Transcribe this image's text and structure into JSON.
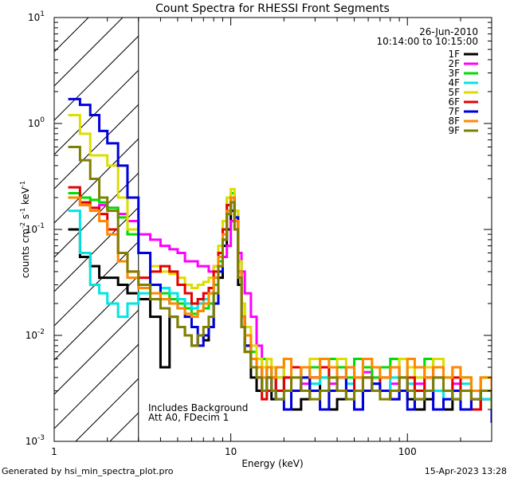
{
  "chart_data": {
    "type": "line",
    "title": "Count Spectra for RHESSI Front Segments",
    "xlabel": "Energy (keV)",
    "ylabel_parts": [
      "counts cm",
      "-2",
      " s",
      "-1",
      " keV",
      "-1"
    ],
    "xscale": "log",
    "yscale": "log",
    "xlim": [
      1,
      300
    ],
    "ylim": [
      0.001,
      10
    ],
    "x_ticks": [
      {
        "value": 1,
        "label": "1"
      },
      {
        "value": 10,
        "label": "10"
      },
      {
        "value": 100,
        "label": "100"
      }
    ],
    "y_ticks": [
      {
        "value": 0.001,
        "base": "10",
        "exp": "-3"
      },
      {
        "value": 0.01,
        "base": "10",
        "exp": "-2"
      },
      {
        "value": 0.1,
        "base": "10",
        "exp": "-1"
      },
      {
        "value": 1,
        "base": "10",
        "exp": "0"
      },
      {
        "value": 10,
        "base": "10",
        "exp": "1"
      }
    ],
    "shaded_region": {
      "x_from": 1,
      "x_to": 3,
      "pattern": "diagonal-hatch"
    },
    "date": "26-Jun-2010",
    "time_range": "10:14:00 to 10:15:00",
    "annotations": [
      "Includes Background",
      "Att A0, FDecim 1"
    ],
    "footer_left": "Generated by hsi_min_spectra_plot.pro",
    "footer_right": "15-Apr-2023 13:28",
    "series": [
      {
        "name": "1F",
        "color": "#000000",
        "x": [
          1.2,
          1.4,
          1.6,
          1.8,
          2.0,
          2.3,
          2.6,
          3.0,
          3.5,
          4.0,
          4.5,
          5.0,
          5.5,
          6.0,
          6.5,
          7.0,
          7.5,
          8.0,
          8.5,
          9.0,
          9.5,
          10.0,
          10.5,
          11.0,
          11.5,
          12.0,
          13,
          14,
          15,
          16,
          17,
          18,
          20,
          22,
          25,
          28,
          32,
          36,
          40,
          45,
          50,
          56,
          63,
          70,
          80,
          90,
          100,
          110,
          125,
          140,
          160,
          180,
          200,
          230,
          260,
          300
        ],
        "y": [
          0.1,
          0.055,
          0.045,
          0.035,
          0.035,
          0.03,
          0.025,
          0.022,
          0.015,
          0.005,
          0.015,
          0.012,
          0.01,
          0.008,
          0.01,
          0.009,
          0.012,
          0.02,
          0.035,
          0.07,
          0.1,
          0.15,
          0.12,
          0.03,
          0.012,
          0.007,
          0.004,
          0.003,
          0.005,
          0.003,
          0.0025,
          0.004,
          0.003,
          0.002,
          0.0025,
          0.004,
          0.003,
          0.002,
          0.0025,
          0.003,
          0.002,
          0.003,
          0.0035,
          0.003,
          0.0025,
          0.003,
          0.0025,
          0.002,
          0.0025,
          0.003,
          0.002,
          0.0025,
          0.003,
          0.002,
          0.0025,
          0.0015
        ]
      },
      {
        "name": "2F",
        "color": "#ff00ff",
        "x": [
          1.2,
          1.4,
          1.6,
          1.8,
          2.0,
          2.3,
          2.6,
          3.0,
          3.5,
          4.0,
          4.5,
          5.0,
          5.5,
          6.0,
          6.5,
          7.0,
          7.5,
          8.0,
          8.5,
          9.0,
          9.5,
          10.0,
          10.5,
          11.0,
          11.5,
          12.0,
          13,
          14,
          15,
          16,
          17,
          18,
          20,
          22,
          25,
          28,
          32,
          36,
          40,
          45,
          50,
          56,
          63,
          70,
          80,
          90,
          100,
          110,
          125,
          140,
          160,
          180,
          200,
          230,
          260,
          300
        ],
        "y": [
          0.2,
          0.17,
          0.16,
          0.17,
          0.16,
          0.14,
          0.12,
          0.09,
          0.08,
          0.07,
          0.065,
          0.06,
          0.05,
          0.05,
          0.045,
          0.045,
          0.04,
          0.045,
          0.05,
          0.055,
          0.07,
          0.12,
          0.15,
          0.06,
          0.04,
          0.025,
          0.015,
          0.008,
          0.006,
          0.005,
          0.004,
          0.005,
          0.004,
          0.003,
          0.0035,
          0.004,
          0.005,
          0.0035,
          0.004,
          0.003,
          0.004,
          0.0045,
          0.004,
          0.003,
          0.0035,
          0.004,
          0.003,
          0.0035,
          0.003,
          0.004,
          0.003,
          0.0035,
          0.004,
          0.003,
          0.0025,
          0.002
        ]
      },
      {
        "name": "3F",
        "color": "#00dd00",
        "x": [
          1.2,
          1.4,
          1.6,
          1.8,
          2.0,
          2.3,
          2.6,
          3.0,
          3.5,
          4.0,
          4.5,
          5.0,
          5.5,
          6.0,
          6.5,
          7.0,
          7.5,
          8.0,
          8.5,
          9.0,
          9.5,
          10.0,
          10.5,
          11.0,
          11.5,
          12.0,
          13,
          14,
          15,
          16,
          17,
          18,
          20,
          22,
          25,
          28,
          32,
          36,
          40,
          45,
          50,
          56,
          63,
          70,
          80,
          90,
          100,
          110,
          125,
          140,
          160,
          180,
          200,
          230,
          260,
          300
        ],
        "y": [
          0.22,
          0.2,
          0.19,
          0.18,
          0.16,
          0.13,
          0.09,
          0.06,
          0.03,
          0.025,
          0.022,
          0.02,
          0.018,
          0.016,
          0.017,
          0.018,
          0.02,
          0.03,
          0.05,
          0.1,
          0.2,
          0.22,
          0.15,
          0.05,
          0.02,
          0.01,
          0.007,
          0.005,
          0.006,
          0.004,
          0.005,
          0.004,
          0.006,
          0.005,
          0.004,
          0.005,
          0.004,
          0.006,
          0.005,
          0.004,
          0.006,
          0.005,
          0.004,
          0.005,
          0.006,
          0.004,
          0.005,
          0.004,
          0.006,
          0.005,
          0.004,
          0.005,
          0.004,
          0.003,
          0.004,
          0.003
        ]
      },
      {
        "name": "4F",
        "color": "#00e5e5",
        "x": [
          1.2,
          1.4,
          1.6,
          1.8,
          2.0,
          2.3,
          2.6,
          3.0,
          3.5,
          4.0,
          4.5,
          5.0,
          5.5,
          6.0,
          6.5,
          7.0,
          7.5,
          8.0,
          8.5,
          9.0,
          9.5,
          10.0,
          10.5,
          11.0,
          11.5,
          12.0,
          13,
          14,
          15,
          16,
          17,
          18,
          20,
          22,
          25,
          28,
          32,
          36,
          40,
          45,
          50,
          56,
          63,
          70,
          80,
          90,
          100,
          110,
          125,
          140,
          160,
          180,
          200,
          230,
          260,
          300
        ],
        "y": [
          0.15,
          0.06,
          0.03,
          0.025,
          0.02,
          0.015,
          0.02,
          0.025,
          0.03,
          0.028,
          0.025,
          0.022,
          0.02,
          0.018,
          0.02,
          0.022,
          0.025,
          0.035,
          0.06,
          0.1,
          0.15,
          0.18,
          0.12,
          0.04,
          0.015,
          0.008,
          0.005,
          0.004,
          0.003,
          0.004,
          0.003,
          0.0025,
          0.003,
          0.004,
          0.003,
          0.0035,
          0.004,
          0.003,
          0.004,
          0.0035,
          0.003,
          0.004,
          0.0035,
          0.003,
          0.004,
          0.003,
          0.0035,
          0.003,
          0.004,
          0.003,
          0.0025,
          0.003,
          0.0035,
          0.003,
          0.0025,
          0.002
        ]
      },
      {
        "name": "5F",
        "color": "#dddd00",
        "x": [
          1.2,
          1.4,
          1.6,
          1.8,
          2.0,
          2.3,
          2.6,
          3.0,
          3.5,
          4.0,
          4.5,
          5.0,
          5.5,
          6.0,
          6.5,
          7.0,
          7.5,
          8.0,
          8.5,
          9.0,
          9.5,
          10.0,
          10.5,
          11.0,
          11.5,
          12.0,
          13,
          14,
          15,
          16,
          17,
          18,
          20,
          22,
          25,
          28,
          32,
          36,
          40,
          45,
          50,
          56,
          63,
          70,
          80,
          90,
          100,
          110,
          125,
          140,
          160,
          180,
          200,
          230,
          260,
          300
        ],
        "y": [
          1.2,
          0.8,
          0.5,
          0.5,
          0.4,
          0.2,
          0.1,
          0.06,
          0.045,
          0.04,
          0.038,
          0.035,
          0.03,
          0.028,
          0.03,
          0.032,
          0.035,
          0.045,
          0.07,
          0.12,
          0.2,
          0.24,
          0.15,
          0.05,
          0.02,
          0.012,
          0.008,
          0.006,
          0.005,
          0.006,
          0.005,
          0.004,
          0.006,
          0.005,
          0.005,
          0.006,
          0.005,
          0.004,
          0.006,
          0.005,
          0.004,
          0.006,
          0.005,
          0.004,
          0.005,
          0.006,
          0.005,
          0.004,
          0.005,
          0.006,
          0.004,
          0.005,
          0.004,
          0.003,
          0.004,
          0.003
        ]
      },
      {
        "name": "6F",
        "color": "#e50000",
        "x": [
          1.2,
          1.4,
          1.6,
          1.8,
          2.0,
          2.3,
          2.6,
          3.0,
          3.5,
          4.0,
          4.5,
          5.0,
          5.5,
          6.0,
          6.5,
          7.0,
          7.5,
          8.0,
          8.5,
          9.0,
          9.5,
          10.0,
          10.5,
          11.0,
          11.5,
          12.0,
          13,
          14,
          15,
          16,
          17,
          18,
          20,
          22,
          25,
          28,
          32,
          36,
          40,
          45,
          50,
          56,
          63,
          70,
          80,
          90,
          100,
          110,
          125,
          140,
          160,
          180,
          200,
          230,
          260,
          300
        ],
        "y": [
          0.25,
          0.18,
          0.16,
          0.14,
          0.1,
          0.06,
          0.04,
          0.035,
          0.04,
          0.045,
          0.04,
          0.03,
          0.025,
          0.02,
          0.022,
          0.025,
          0.028,
          0.04,
          0.06,
          0.1,
          0.17,
          0.2,
          0.12,
          0.04,
          0.015,
          0.008,
          0.006,
          0.004,
          0.0025,
          0.003,
          0.004,
          0.003,
          0.004,
          0.005,
          0.003,
          0.004,
          0.005,
          0.003,
          0.004,
          0.005,
          0.003,
          0.004,
          0.003,
          0.004,
          0.005,
          0.003,
          0.004,
          0.003,
          0.004,
          0.005,
          0.003,
          0.004,
          0.003,
          0.002,
          0.003,
          0.0025
        ]
      },
      {
        "name": "7F",
        "color": "#0000dd",
        "x": [
          1.2,
          1.4,
          1.6,
          1.8,
          2.0,
          2.3,
          2.6,
          3.0,
          3.5,
          4.0,
          4.5,
          5.0,
          5.5,
          6.0,
          6.5,
          7.0,
          7.5,
          8.0,
          8.5,
          9.0,
          9.5,
          10.0,
          10.5,
          11.0,
          11.5,
          12.0,
          13,
          14,
          15,
          16,
          17,
          18,
          20,
          22,
          25,
          28,
          32,
          36,
          40,
          45,
          50,
          56,
          63,
          70,
          80,
          90,
          100,
          110,
          125,
          140,
          160,
          180,
          200,
          230,
          260,
          300
        ],
        "y": [
          1.7,
          1.5,
          1.2,
          0.85,
          0.65,
          0.4,
          0.2,
          0.06,
          0.03,
          0.022,
          0.02,
          0.018,
          0.015,
          0.012,
          0.008,
          0.01,
          0.012,
          0.02,
          0.04,
          0.08,
          0.15,
          0.2,
          0.13,
          0.04,
          0.015,
          0.008,
          0.005,
          0.004,
          0.003,
          0.004,
          0.003,
          0.0025,
          0.002,
          0.003,
          0.004,
          0.003,
          0.002,
          0.003,
          0.004,
          0.003,
          0.002,
          0.003,
          0.0035,
          0.003,
          0.0025,
          0.003,
          0.002,
          0.0025,
          0.003,
          0.002,
          0.0025,
          0.003,
          0.002,
          0.0025,
          0.003,
          0.0015
        ]
      },
      {
        "name": "8F",
        "color": "#ff8800",
        "x": [
          1.2,
          1.4,
          1.6,
          1.8,
          2.0,
          2.3,
          2.6,
          3.0,
          3.5,
          4.0,
          4.5,
          5.0,
          5.5,
          6.0,
          6.5,
          7.0,
          7.5,
          8.0,
          8.5,
          9.0,
          9.5,
          10.0,
          10.5,
          11.0,
          11.5,
          12.0,
          13,
          14,
          15,
          16,
          17,
          18,
          20,
          22,
          25,
          28,
          32,
          36,
          40,
          45,
          50,
          56,
          63,
          70,
          80,
          90,
          100,
          110,
          125,
          140,
          160,
          180,
          200,
          230,
          260,
          300
        ],
        "y": [
          0.2,
          0.17,
          0.15,
          0.12,
          0.09,
          0.05,
          0.035,
          0.028,
          0.025,
          0.022,
          0.02,
          0.018,
          0.016,
          0.015,
          0.017,
          0.02,
          0.025,
          0.035,
          0.055,
          0.09,
          0.15,
          0.2,
          0.12,
          0.04,
          0.015,
          0.01,
          0.006,
          0.005,
          0.004,
          0.005,
          0.004,
          0.005,
          0.006,
          0.004,
          0.005,
          0.004,
          0.006,
          0.005,
          0.004,
          0.005,
          0.004,
          0.006,
          0.005,
          0.004,
          0.005,
          0.004,
          0.006,
          0.005,
          0.004,
          0.005,
          0.004,
          0.005,
          0.004,
          0.003,
          0.004,
          0.003
        ]
      },
      {
        "name": "9F",
        "color": "#808000",
        "x": [
          1.2,
          1.4,
          1.6,
          1.8,
          2.0,
          2.3,
          2.6,
          3.0,
          3.5,
          4.0,
          4.5,
          5.0,
          5.5,
          6.0,
          6.5,
          7.0,
          7.5,
          8.0,
          8.5,
          9.0,
          9.5,
          10.0,
          10.5,
          11.0,
          11.5,
          12.0,
          13,
          14,
          15,
          16,
          17,
          18,
          20,
          22,
          25,
          28,
          32,
          36,
          40,
          45,
          50,
          56,
          63,
          70,
          80,
          90,
          100,
          110,
          125,
          140,
          160,
          180,
          200,
          230,
          260,
          300
        ],
        "y": [
          0.6,
          0.45,
          0.3,
          0.2,
          0.15,
          0.06,
          0.04,
          0.03,
          0.022,
          0.018,
          0.015,
          0.012,
          0.01,
          0.008,
          0.01,
          0.012,
          0.015,
          0.025,
          0.045,
          0.08,
          0.14,
          0.18,
          0.1,
          0.035,
          0.012,
          0.007,
          0.005,
          0.004,
          0.003,
          0.004,
          0.003,
          0.0025,
          0.003,
          0.004,
          0.003,
          0.0025,
          0.003,
          0.004,
          0.003,
          0.0025,
          0.003,
          0.004,
          0.003,
          0.0025,
          0.003,
          0.004,
          0.003,
          0.0025,
          0.003,
          0.004,
          0.003,
          0.0025,
          0.003,
          0.0025,
          0.003,
          0.002
        ]
      }
    ]
  }
}
